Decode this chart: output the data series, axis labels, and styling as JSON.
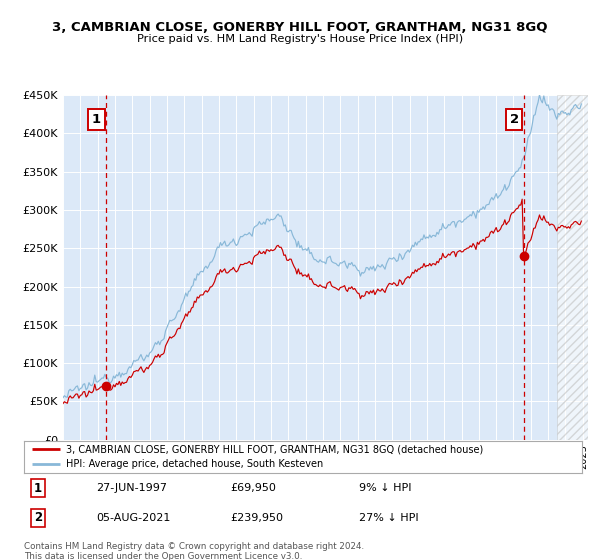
{
  "title": "3, CAMBRIAN CLOSE, GONERBY HILL FOOT, GRANTHAM, NG31 8GQ",
  "subtitle": "Price paid vs. HM Land Registry's House Price Index (HPI)",
  "legend_line1": "3, CAMBRIAN CLOSE, GONERBY HILL FOOT, GRANTHAM, NG31 8GQ (detached house)",
  "legend_line2": "HPI: Average price, detached house, South Kesteven",
  "annotation1_date": "27-JUN-1997",
  "annotation1_price": 69950,
  "annotation1_pct": "9% ↓ HPI",
  "annotation2_date": "05-AUG-2021",
  "annotation2_price": 239950,
  "annotation2_pct": "27% ↓ HPI",
  "purchase1_year": 1997.49,
  "purchase2_year": 2021.59,
  "footnote": "Contains HM Land Registry data © Crown copyright and database right 2024.\nThis data is licensed under the Open Government Licence v3.0.",
  "ylim_min": 0,
  "ylim_max": 450000,
  "xlim_min": 1995,
  "xlim_max": 2025.3,
  "plot_bg": "#dce9f8",
  "hpi_color": "#89b8d8",
  "property_color": "#cc0000",
  "dashed_line_color": "#cc0000",
  "grid_color": "#ffffff",
  "annotation_box_color": "#cc0000"
}
